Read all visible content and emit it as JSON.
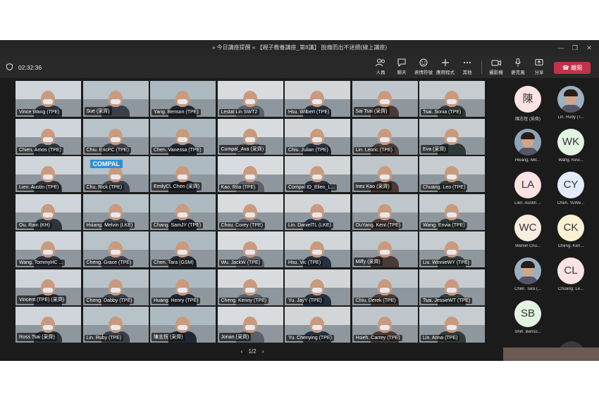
{
  "window": {
    "title": "» 今日講座提醒 « 【親子教養講座_第8講】 脫癮而出不迷網(線上講座)",
    "minimize": "—",
    "maximize": "❐",
    "close": "✕"
  },
  "toolbar": {
    "timer": "02:32:36",
    "items": [
      {
        "label": "人員",
        "icon": "people-icon"
      },
      {
        "label": "聊天",
        "icon": "chat-icon"
      },
      {
        "label": "表情符號",
        "icon": "reactions-icon"
      },
      {
        "label": "應用程式",
        "icon": "add-apps-icon"
      },
      {
        "label": "其他",
        "icon": "more-icon"
      },
      {
        "label": "攝影機",
        "icon": "camera-icon"
      },
      {
        "label": "麥克風",
        "icon": "microphone-icon"
      },
      {
        "label": "分享",
        "icon": "share-icon"
      }
    ],
    "leave_label": "離開"
  },
  "grid": {
    "tiles": [
      "Vince Wang (TPE)",
      "Sue (采齊)",
      "Yang. Benson (TPE)",
      "Lestat Lin SWT2",
      "Hsu. Wilbert (TPE)",
      "Sai Tsai (采齊)",
      "Tsai. Sonia (TPE)",
      "Chien. Amos (TPE)",
      "Chiu. EricPC (TPE)",
      "Chen. Vanessa (TPE)",
      "Compal_Ava (采齊)",
      "Chiu. Julian (TPE)",
      "Lin. Leoric (TPE)",
      "Eva (采齊)",
      "Lien. Austin (TPE)",
      "Chu. Rick (TPE)",
      "EmilyCL Chen (采齊)",
      "Kao. Rita (TPE)",
      "Compal ID_Elien_L...",
      "Inez Kao (采齊)",
      "Chuang. Leo (TPE)",
      "Ou. Rain (KH)",
      "Hsiang. Melvin (LKE)",
      "Chang. SamJY (TPE)",
      "Chou. Corey (TPE)",
      "Lin. DanielTL (LKE)",
      "OuYang. Kent (TPE)",
      "Wang. Envia (TPE)",
      "Wang. TommyHC ...",
      "Cheng. Grace (TPE)",
      "Chen. Tara (GSM)",
      "Wu. JackW (TPE)",
      "Hsu. Vic (TPE)",
      "Miffy (采齊)",
      "Liu. WinnieWY (TPE)",
      "Vincent (TPE) (采齊)",
      "Cheng. Dabby (TPE)",
      "Huang. Henry (TPE)",
      "Cheng. Kenny (TPE)",
      "Yu. JayY (TPE)",
      "Chiu. Derek (TPE)",
      "Tsai. JessieWT (TPE)",
      "Ross Tsai (采齊)",
      "Lin. Ruby (TPE)",
      "陳志恆 (采齊)",
      "Jonan (采齊)",
      "Yu. Chenying (TPE)",
      "Hsieh. Carrey (TPE)",
      "Lin. Anna (TPE)"
    ],
    "banner_text": "COMPAL"
  },
  "pager": {
    "text": "1/2",
    "prev": "‹",
    "next": "›"
  },
  "roster": {
    "people": [
      {
        "initials": "陳",
        "name": "陳志恆 (采齊)",
        "color": "#fbe2e3"
      },
      {
        "initials": "",
        "name": "Lin. Ruby (T...",
        "color": "#9bb0c0"
      },
      {
        "initials": "",
        "name": "Hwang. Mic...",
        "color": "#8fa3b5"
      },
      {
        "initials": "WK",
        "name": "Wang. Kevi...",
        "color": "#e3f3e2"
      },
      {
        "initials": "LA",
        "name": "Lien. Austin ...",
        "color": "#fbe2e3"
      },
      {
        "initials": "CY",
        "name": "Chen. YuWe...",
        "color": "#e3ecfa"
      },
      {
        "initials": "WC",
        "name": "Wenlin Chu...",
        "color": "#f7ecdf"
      },
      {
        "initials": "CK",
        "name": "Cheng. Ken...",
        "color": "#fcf1d2"
      },
      {
        "initials": "",
        "name": "Chen. Tara (...",
        "color": "#9bb0c0"
      },
      {
        "initials": "CL",
        "name": "Chuang. Le...",
        "color": "#fbe2e3"
      },
      {
        "initials": "SB",
        "name": "Shih. Benso...",
        "color": "#e3f3e2"
      }
    ],
    "more": "+127"
  }
}
